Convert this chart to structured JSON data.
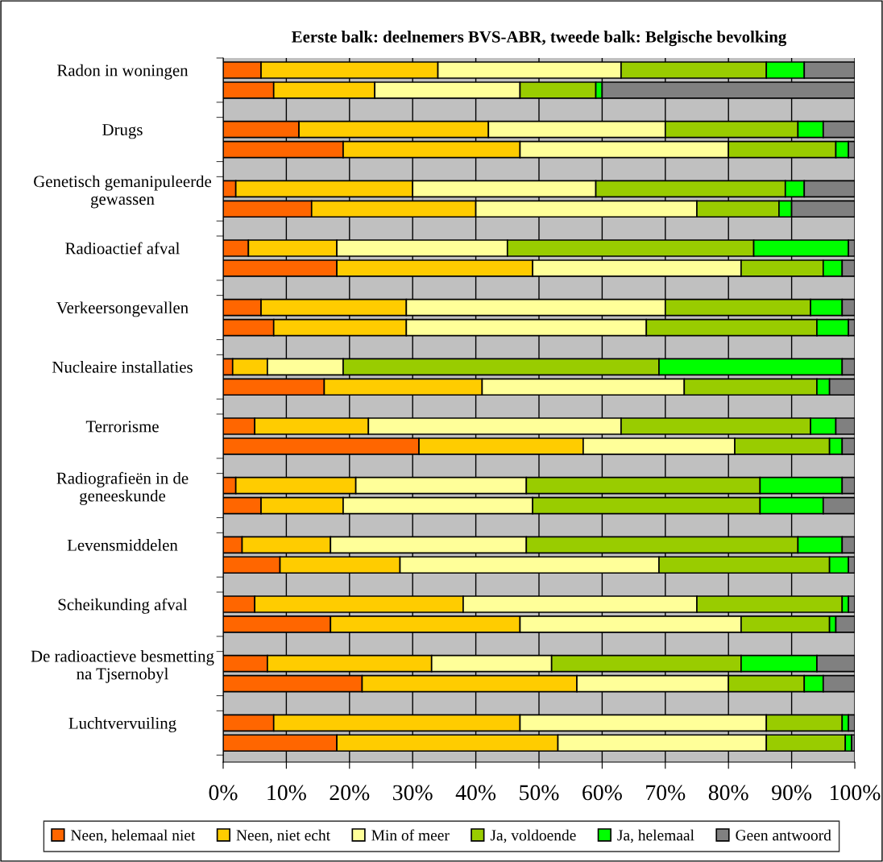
{
  "chart_data": {
    "type": "bar",
    "orientation": "horizontal",
    "stacked": true,
    "title": "Eerste balk: deelnemers BVS-ABR, tweede balk: Belgische bevolking",
    "categories": [
      "Radon in woningen",
      null,
      "Drugs",
      null,
      "Genetisch gemanipuleerde\ngewassen",
      null,
      "Radioactief afval",
      null,
      "Verkeersongevallen",
      null,
      "Nucleaire installaties",
      null,
      "Terrorisme",
      null,
      "Radiografieën in de\ngeneeskunde",
      null,
      "Levensmiddelen",
      null,
      "Scheikunding afval",
      null,
      "De radioactieve besmetting\nna Tjsernobyl",
      null,
      "Luchtvervuiling",
      null
    ],
    "series": [
      {
        "name": "Neen, helemaal niet",
        "color": "#ff6600",
        "values": [
          6,
          8,
          12,
          19,
          2,
          14,
          4,
          18,
          6,
          8,
          1.5,
          16,
          5,
          31,
          2,
          6,
          3,
          9,
          5,
          17,
          7,
          22,
          8,
          18
        ]
      },
      {
        "name": "Neen, niet echt",
        "color": "#ffcc00",
        "values": [
          28,
          16,
          30,
          28,
          28,
          26,
          14,
          31,
          23,
          21,
          5.5,
          25,
          18,
          26,
          19,
          13,
          14,
          19,
          33,
          30,
          26,
          34,
          39,
          35
        ]
      },
      {
        "name": "Min of meer",
        "color": "#ffff99",
        "values": [
          29,
          23,
          28,
          33,
          29,
          35,
          27,
          33,
          41,
          38,
          12,
          32,
          40,
          24,
          27,
          30,
          31,
          41,
          37,
          35,
          19,
          24,
          39,
          33
        ]
      },
      {
        "name": "Ja, voldoende",
        "color": "#99cc00",
        "values": [
          23,
          12,
          21,
          17,
          30,
          13,
          39,
          13,
          23,
          27,
          50,
          21,
          30,
          15,
          37,
          36,
          43,
          27,
          23,
          14,
          30,
          12,
          12,
          12.5
        ]
      },
      {
        "name": "Ja, helemaal",
        "color": "#00ff00",
        "values": [
          6,
          1,
          4,
          2,
          3,
          2,
          15,
          3,
          5,
          5,
          29,
          2,
          4,
          2,
          13,
          10,
          7,
          3,
          1,
          1,
          12,
          3,
          1,
          1
        ]
      },
      {
        "name": "Geen antwoord",
        "color": "#808080",
        "values": [
          8,
          40,
          5,
          1,
          8,
          10,
          1,
          2,
          2,
          1,
          2,
          4,
          3,
          2,
          2,
          5,
          2,
          1,
          1,
          3,
          6,
          5,
          1,
          0.5
        ]
      }
    ],
    "xlim": [
      0,
      100
    ],
    "xticks": [
      {
        "value": 0,
        "label": "0%"
      },
      {
        "value": 10,
        "label": "10%"
      },
      {
        "value": 20,
        "label": "20%"
      },
      {
        "value": 30,
        "label": "30%"
      },
      {
        "value": 40,
        "label": "40%"
      },
      {
        "value": 50,
        "label": "50%"
      },
      {
        "value": 60,
        "label": "60%"
      },
      {
        "value": 70,
        "label": "70%"
      },
      {
        "value": 80,
        "label": "80%"
      },
      {
        "value": 90,
        "label": "90%"
      },
      {
        "value": 100,
        "label": "100%"
      }
    ],
    "grid": "x",
    "legend": "bottom"
  }
}
